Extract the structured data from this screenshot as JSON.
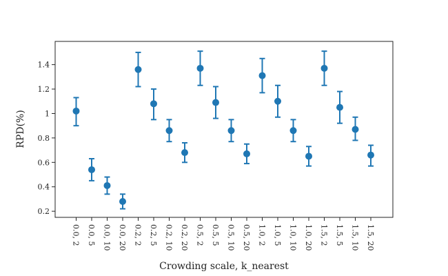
{
  "chart_data": {
    "type": "scatter",
    "title": "",
    "xlabel": "Crowding scale, k_nearest",
    "ylabel": "RPD(%)",
    "categories": [
      "0.0, 2",
      "0.0, 5",
      "0.0, 10",
      "0.0, 20",
      "0.2, 2",
      "0.2, 5",
      "0.2, 10",
      "0.2, 20",
      "0.5, 2",
      "0.5, 5",
      "0.5, 10",
      "0.5, 20",
      "1.0, 2",
      "1.0, 5",
      "1.0, 10",
      "1.0, 20",
      "1.5, 2",
      "1.5, 5",
      "1.5, 10",
      "1.5, 20"
    ],
    "values": [
      1.02,
      0.54,
      0.41,
      0.28,
      1.36,
      1.08,
      0.86,
      0.68,
      1.37,
      1.09,
      0.86,
      0.67,
      1.31,
      1.1,
      0.86,
      0.65,
      1.37,
      1.05,
      0.87,
      0.66
    ],
    "error_low": [
      0.9,
      0.45,
      0.34,
      0.22,
      1.22,
      0.95,
      0.77,
      0.6,
      1.23,
      0.96,
      0.77,
      0.59,
      1.17,
      0.97,
      0.77,
      0.57,
      1.23,
      0.92,
      0.78,
      0.57
    ],
    "error_high": [
      1.13,
      0.63,
      0.48,
      0.34,
      1.5,
      1.2,
      0.95,
      0.76,
      1.51,
      1.22,
      0.95,
      0.75,
      1.45,
      1.23,
      0.95,
      0.73,
      1.51,
      1.18,
      0.97,
      0.74
    ],
    "ylim": [
      0.15,
      1.59
    ],
    "yticks": [
      0.2,
      0.4,
      0.6,
      0.8,
      1,
      1.2,
      1.4
    ],
    "yticklabels": [
      "0.2",
      "0.4",
      "0.6",
      "0.8",
      "1",
      "1.2",
      "1.4"
    ],
    "grid": false,
    "legend": "none",
    "color": "#1f77b4"
  }
}
